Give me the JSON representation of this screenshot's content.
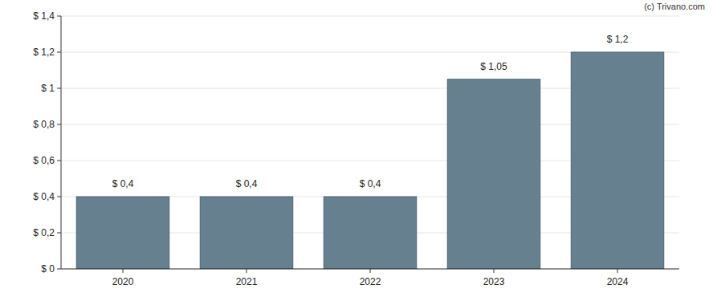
{
  "chart_data": {
    "type": "bar",
    "annotations": [
      "(c) Trivano.com"
    ],
    "categories": [
      "2020",
      "2021",
      "2022",
      "2023",
      "2024"
    ],
    "values": [
      0.4,
      0.4,
      0.4,
      1.05,
      1.2
    ],
    "value_labels": [
      "$ 0,4",
      "$ 0,4",
      "$ 0,4",
      "$ 1,05",
      "$ 1,2"
    ],
    "color": "#66808f",
    "ylim": [
      0,
      1.4
    ],
    "yticks": [
      {
        "value": 0,
        "label": "$ 0"
      },
      {
        "value": 0.2,
        "label": "$ 0,2"
      },
      {
        "value": 0.4,
        "label": "$ 0,4"
      },
      {
        "value": 0.6,
        "label": "$ 0,6"
      },
      {
        "value": 0.8,
        "label": "$ 0,8"
      },
      {
        "value": 1,
        "label": "$ 1"
      },
      {
        "value": 1.2,
        "label": "$ 1,2"
      },
      {
        "value": 1.4,
        "label": "$ 1,4"
      }
    ],
    "grid": true,
    "data_labels": true
  }
}
